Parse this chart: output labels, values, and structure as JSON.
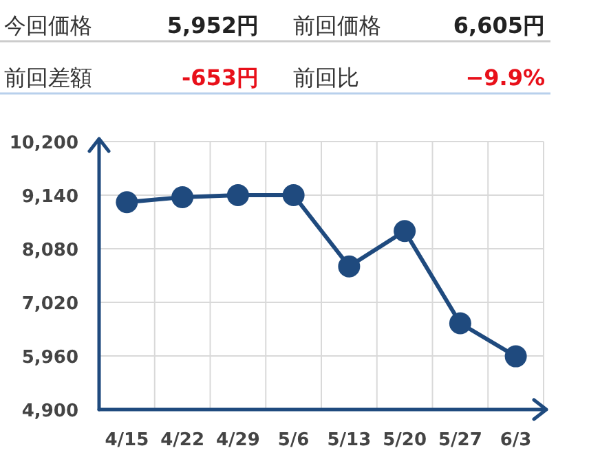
{
  "chart_data": {
    "type": "line",
    "categories": [
      "4/15",
      "4/22",
      "4/29",
      "5/6",
      "5/13",
      "5/20",
      "5/27",
      "6/3"
    ],
    "series": [
      {
        "color": "#1f4a7e",
        "values": [
          9000,
          9100,
          9140,
          9140,
          7730,
          8430,
          6605,
          5952
        ]
      }
    ],
    "ylim": [
      4900,
      10200
    ],
    "yticks": [
      {
        "value": 4900,
        "label": "4,900"
      },
      {
        "value": 5960,
        "label": "5,960"
      },
      {
        "value": 7020,
        "label": "7,020"
      },
      {
        "value": 8080,
        "label": "8,080"
      },
      {
        "value": 9140,
        "label": "9,140"
      },
      {
        "value": 10200,
        "label": "10,200"
      }
    ],
    "grid": true,
    "marker": "circle",
    "annotations": [
      "今回価格",
      "5,952円",
      "前回価格",
      "6,605円",
      "前回差額",
      "-653円",
      "前回比",
      "−9.9%"
    ]
  }
}
